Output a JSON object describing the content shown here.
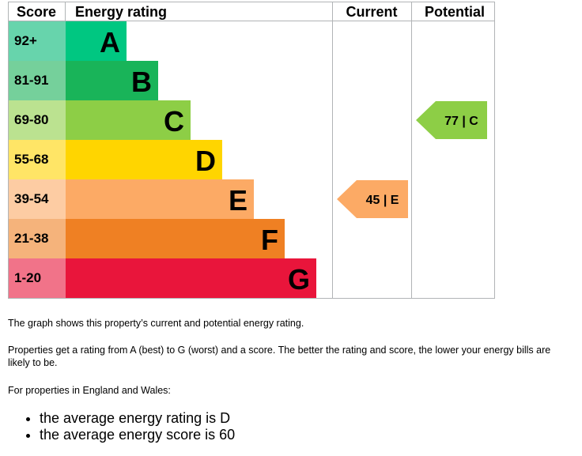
{
  "chart_data": {
    "type": "table",
    "headers": {
      "score": "Score",
      "rating": "Energy rating",
      "current": "Current",
      "potential": "Potential"
    },
    "bands": [
      {
        "letter": "A",
        "range": "92+",
        "color": "#00c781",
        "score_color": "#67d4ac"
      },
      {
        "letter": "B",
        "range": "81-91",
        "color": "#19b459",
        "score_color": "#75d09b"
      },
      {
        "letter": "C",
        "range": "69-80",
        "color": "#8dce46",
        "score_color": "#bbe290"
      },
      {
        "letter": "D",
        "range": "55-68",
        "color": "#ffd500",
        "score_color": "#ffe566"
      },
      {
        "letter": "E",
        "range": "39-54",
        "color": "#fcaa65",
        "score_color": "#fdcca3"
      },
      {
        "letter": "F",
        "range": "21-38",
        "color": "#ef8023",
        "score_color": "#f5b37b"
      },
      {
        "letter": "G",
        "range": "1-20",
        "color": "#e9153b",
        "score_color": "#f17389"
      }
    ],
    "current": {
      "score": 45,
      "band": "E",
      "label": "45 | E",
      "color": "#fcaa65"
    },
    "potential": {
      "score": 77,
      "band": "C",
      "label": "77 | C",
      "color": "#8dce46"
    }
  },
  "text": {
    "line1": "The graph shows this property’s current and potential energy rating.",
    "line2": "Properties get a rating from A (best) to G (worst) and a score. The better the rating and score, the lower your energy bills are likely to be.",
    "line3": "For properties in England and Wales:",
    "bullets": [
      "the average energy rating is D",
      "the average energy score is 60"
    ]
  }
}
